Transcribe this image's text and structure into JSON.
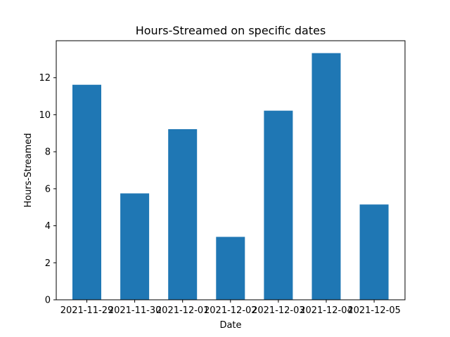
{
  "chart_data": {
    "type": "bar",
    "title": "Hours-Streamed on specific dates",
    "xlabel": "Date",
    "ylabel": "Hours-Streamed",
    "categories": [
      "2021-11-29",
      "2021-11-30",
      "2021-12-01",
      "2021-12-02",
      "2021-12-03",
      "2021-12-04",
      "2021-12-05"
    ],
    "values": [
      11.62,
      5.75,
      9.22,
      3.4,
      10.22,
      13.33,
      5.15
    ],
    "ylim": [
      0,
      14
    ],
    "yticks": [
      0,
      2,
      4,
      6,
      8,
      10,
      12
    ],
    "grid": false,
    "bar_color": "#1f77b4"
  }
}
